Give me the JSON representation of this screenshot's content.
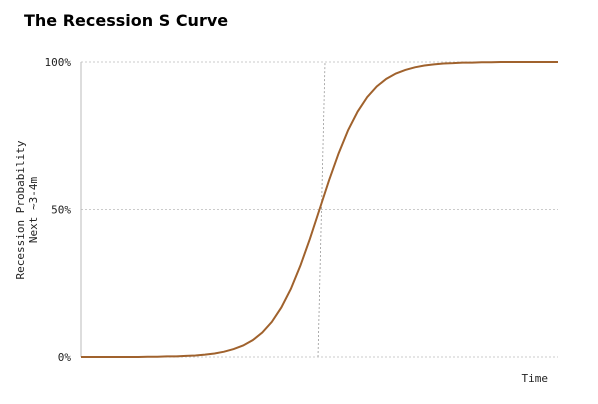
{
  "chart_data": {
    "type": "line",
    "title": "The Recession S Curve",
    "x_label": "Time",
    "y_label": [
      "Recession Probability",
      "Next ~3-4m"
    ],
    "x": [
      0,
      2,
      4,
      6,
      8,
      10,
      12,
      14,
      16,
      18,
      20,
      22,
      24,
      26,
      28,
      30,
      32,
      34,
      36,
      38,
      40,
      42,
      44,
      46,
      48,
      50,
      52,
      54,
      56,
      58,
      60,
      62,
      64,
      66,
      68,
      70,
      72,
      74,
      76,
      78,
      80,
      82,
      84,
      86,
      88,
      90,
      92,
      94,
      96,
      98,
      100
    ],
    "series": [
      {
        "color": "#a0622d",
        "values": [
          0,
          0,
          0,
          0,
          0,
          0,
          0,
          0.1,
          0.1,
          0.2,
          0.2,
          0.4,
          0.5,
          0.8,
          1.2,
          1.8,
          2.7,
          3.9,
          5.7,
          8.3,
          11.9,
          16.8,
          23.1,
          31.0,
          40.1,
          50,
          59.9,
          69.0,
          76.9,
          83.2,
          88.1,
          91.7,
          94.3,
          96.1,
          97.3,
          98.2,
          98.8,
          99.2,
          99.5,
          99.6,
          99.8,
          99.8,
          99.9,
          99.9,
          100,
          100,
          100,
          100,
          100,
          100,
          100
        ]
      }
    ],
    "xlim": [
      0,
      100
    ],
    "ylim": [
      0,
      100
    ],
    "yticks": [
      {
        "value": 0,
        "label": "0%"
      },
      {
        "value": 50,
        "label": "50%"
      },
      {
        "value": 100,
        "label": "100%"
      }
    ],
    "grid": true
  }
}
